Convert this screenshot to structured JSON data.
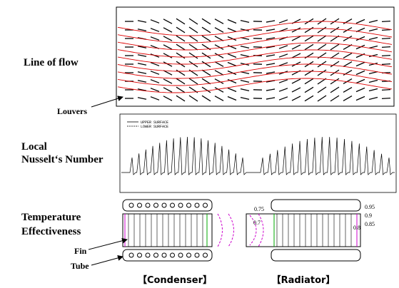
{
  "labels": {
    "line_of_flow": "Line of flow",
    "louvers": "Louvers",
    "local": "Local",
    "nusselt": "Nusselt‘s Number",
    "temperature": "Temperature",
    "effectiveness": "Effectiveness",
    "fin": "Fin",
    "tube": "Tube",
    "condenser": "【Condenser】",
    "radiator": "【Radiator】"
  },
  "plot_legend": [
    "UPPER SURFACE",
    "LOWER SURFACE"
  ],
  "contour_labels": [
    "0.75",
    "0.7",
    "0.95",
    "0.9",
    "0.85",
    "0.8"
  ]
}
